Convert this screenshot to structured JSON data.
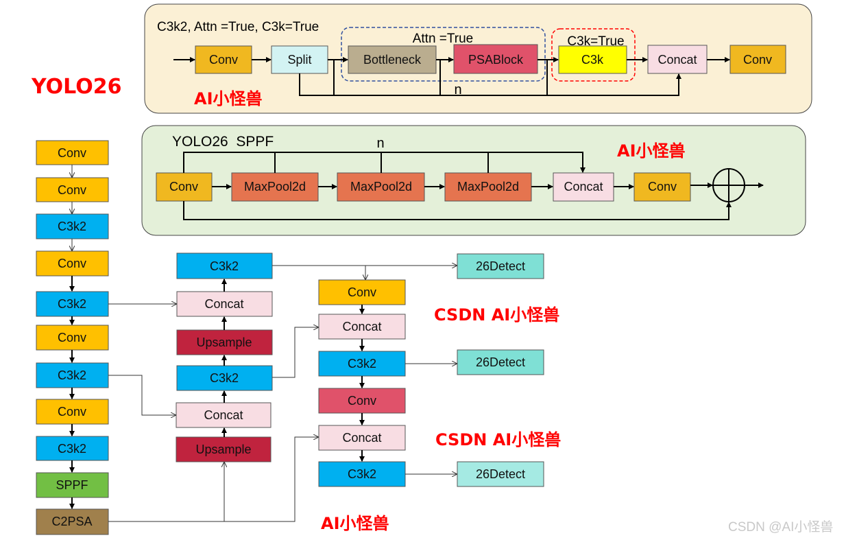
{
  "title": "YOLO26",
  "colors": {
    "conv": "#f0b820",
    "conv_backbone": "#ffc000",
    "c3k2": "#00b0f0",
    "split": "#d3f3f3",
    "bottleneck": "#baad8f",
    "psablock": "#e0526a",
    "c3k": "#ffff00",
    "concat": "#f8dde3",
    "maxpool": "#e5744f",
    "sppf": "#72bf44",
    "c2psa": "#a0804c",
    "upsample": "#c0233e",
    "detect": "#7fe0d5",
    "watermark_red": "#ff0000"
  },
  "c3k2_panel": {
    "title": "C3k2, Attn =True, C3k=True",
    "attn_label": "Attn =True",
    "c3k_label": "C3k=True",
    "n_label": "n",
    "watermark": "AI小怪兽",
    "blocks": [
      "Conv",
      "Split",
      "Bottleneck",
      "PSABlock",
      "C3k",
      "Concat",
      "Conv"
    ]
  },
  "sppf_panel": {
    "title": "YOLO26  SPPF",
    "n_label": "n",
    "watermark": "AI小怪兽",
    "blocks": [
      "Conv",
      "MaxPool2d",
      "MaxPool2d",
      "MaxPool2d",
      "Concat",
      "Conv"
    ],
    "add_symbol": "⊕"
  },
  "backbone": [
    "Conv",
    "Conv",
    "C3k2",
    "Conv",
    "C3k2",
    "Conv",
    "C3k2",
    "Conv",
    "C3k2",
    "SPPF",
    "C2PSA"
  ],
  "neck_up": [
    "C3k2",
    "Concat",
    "Upsample",
    "C3k2",
    "Concat",
    "Upsample"
  ],
  "neck_down": [
    "Conv",
    "Concat",
    "C3k2",
    "Conv",
    "Concat",
    "C3k2"
  ],
  "heads": [
    "26Detect",
    "26Detect",
    "26Detect"
  ],
  "watermarks": [
    "CSDN AI小怪兽",
    "CSDN AI小怪兽",
    "AI小怪兽"
  ],
  "footer_watermark": "CSDN @AI小怪兽"
}
